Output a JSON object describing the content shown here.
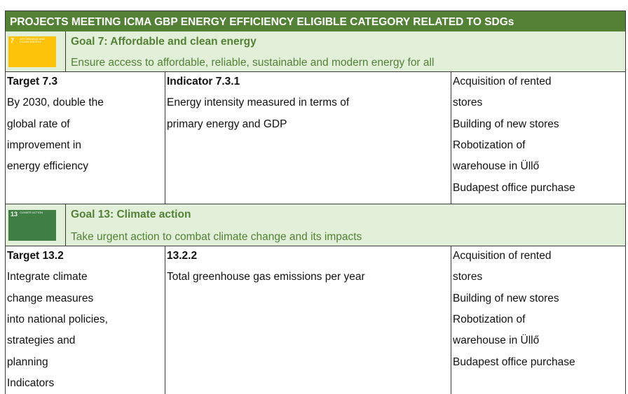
{
  "title": "PROJECTS MEETING ICMA GBP ENERGY EFFICIENCY ELIGIBLE CATEGORY RELATED TO SDGs",
  "sections": [
    {
      "icon_number": "7",
      "icon_label": "AFFORDABLE AND CLEAN ENERGY",
      "goal_title": "Goal 7: Affordable and clean energy",
      "goal_subtitle": "Ensure access to affordable, reliable, sustainable and modern energy for all",
      "target_title": "Target 7.3",
      "target_lines": [
        "By 2030, double the",
        "global rate of",
        "improvement in",
        "energy efficiency"
      ],
      "indicator_title": "Indicator 7.3.1",
      "indicator_lines": [
        "Energy intensity measured in terms of",
        "primary energy and GDP"
      ],
      "project_lines": [
        "Acquisition of rented",
        "stores",
        "Building of new stores",
        "Robotization of",
        "warehouse in Üllő",
        "Budapest office purchase"
      ]
    },
    {
      "icon_number": "13",
      "icon_label": "CLIMATE ACTION",
      "goal_title": "Goal 13: Climate action",
      "goal_subtitle": "Take urgent action to combat climate change and its impacts",
      "target_title": "Target 13.2",
      "target_lines": [
        "Integrate climate",
        "change measures",
        "into national policies,",
        "strategies and",
        "planning",
        "Indicators"
      ],
      "indicator_title": "13.2.2",
      "indicator_lines": [
        "Total greenhouse gas emissions per year"
      ],
      "project_lines": [
        "Acquisition of rented",
        "stores",
        "Building of new stores",
        "Robotization of",
        "warehouse in Üllő",
        "Budapest office purchase"
      ]
    }
  ]
}
